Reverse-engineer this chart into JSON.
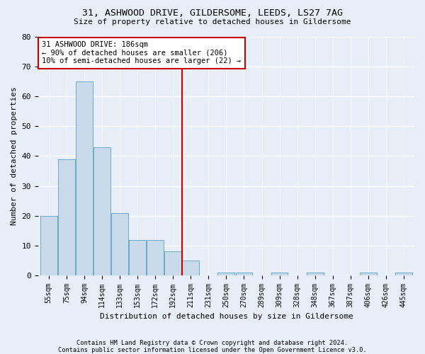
{
  "title1": "31, ASHWOOD DRIVE, GILDERSOME, LEEDS, LS27 7AG",
  "title2": "Size of property relative to detached houses in Gildersome",
  "xlabel": "Distribution of detached houses by size in Gildersome",
  "ylabel": "Number of detached properties",
  "footer1": "Contains HM Land Registry data © Crown copyright and database right 2024.",
  "footer2": "Contains public sector information licensed under the Open Government Licence v3.0.",
  "categories": [
    "55sqm",
    "75sqm",
    "94sqm",
    "114sqm",
    "133sqm",
    "153sqm",
    "172sqm",
    "192sqm",
    "211sqm",
    "231sqm",
    "250sqm",
    "270sqm",
    "289sqm",
    "309sqm",
    "328sqm",
    "348sqm",
    "367sqm",
    "387sqm",
    "406sqm",
    "426sqm",
    "445sqm"
  ],
  "values": [
    20,
    39,
    65,
    43,
    21,
    12,
    12,
    8,
    5,
    0,
    1,
    1,
    0,
    1,
    0,
    1,
    0,
    0,
    1,
    0,
    1
  ],
  "bar_color": "#c9daea",
  "bar_edge_color": "#6aaaca",
  "background_color": "#e8eef8",
  "grid_color": "#ffffff",
  "redline_x": 7.5,
  "redline_label": "31 ASHWOOD DRIVE: 186sqm",
  "annotation_line1": "← 90% of detached houses are smaller (206)",
  "annotation_line2": "10% of semi-detached houses are larger (22) →",
  "annotation_box_color": "#ffffff",
  "annotation_box_edgecolor": "#cc0000",
  "redline_color": "#cc0000",
  "ylim": [
    0,
    80
  ],
  "yticks": [
    0,
    10,
    20,
    30,
    40,
    50,
    60,
    70,
    80
  ]
}
